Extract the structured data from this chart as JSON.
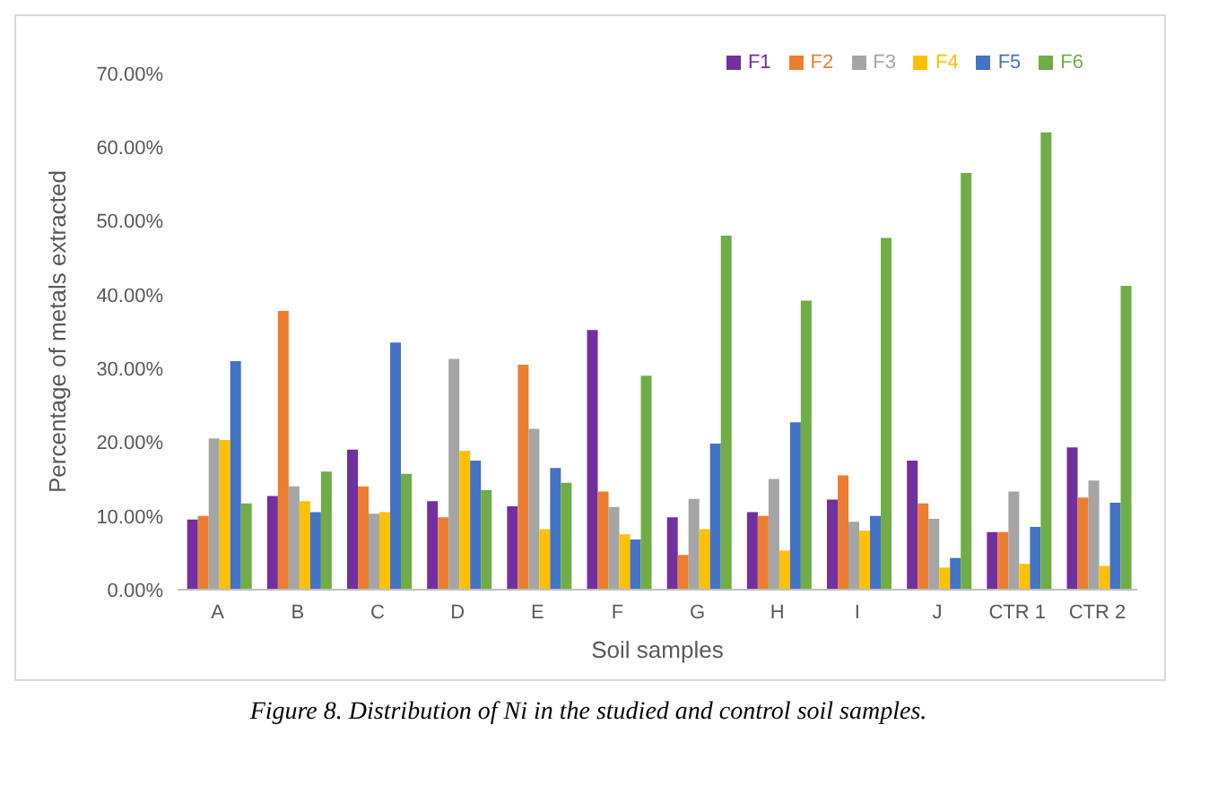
{
  "chart_data": {
    "type": "bar",
    "xlabel": "Soil samples",
    "ylabel": "Percentage of metals extracted",
    "categories": [
      "A",
      "B",
      "C",
      "D",
      "E",
      "F",
      "G",
      "H",
      "I",
      "J",
      "CTR 1",
      "CTR 2"
    ],
    "series": [
      {
        "name": "F1",
        "color": "#7030a0",
        "values": [
          9.5,
          12.7,
          19,
          12,
          11.3,
          35.2,
          9.8,
          10.5,
          12.2,
          17.5,
          7.8,
          19.3
        ]
      },
      {
        "name": "F2",
        "color": "#ed7d31",
        "values": [
          10,
          37.8,
          14,
          9.8,
          30.5,
          13.3,
          4.7,
          10,
          15.5,
          11.7,
          7.8,
          12.5
        ]
      },
      {
        "name": "F3",
        "color": "#a5a5a5",
        "values": [
          20.5,
          14,
          10.3,
          31.3,
          21.8,
          11.2,
          12.3,
          15,
          9.2,
          9.6,
          13.3,
          14.8
        ]
      },
      {
        "name": "F4",
        "color": "#ffc000",
        "values": [
          20.3,
          12,
          10.5,
          18.8,
          8.2,
          7.5,
          8.2,
          5.3,
          8,
          3,
          3.5,
          3.2
        ]
      },
      {
        "name": "F5",
        "color": "#4472c4",
        "values": [
          31,
          10.5,
          33.5,
          17.5,
          16.5,
          6.8,
          19.8,
          22.7,
          10,
          4.3,
          8.5,
          11.8
        ]
      },
      {
        "name": "F6",
        "color": "#70ad47",
        "values": [
          11.7,
          16,
          15.7,
          13.5,
          14.5,
          29,
          48,
          39.2,
          47.7,
          56.5,
          62,
          41.2
        ]
      }
    ],
    "ylim": [
      0,
      70
    ],
    "yticks": [
      {
        "value": 0,
        "label": "0.00%"
      },
      {
        "value": 10,
        "label": "10.00%"
      },
      {
        "value": 20,
        "label": "20.00%"
      },
      {
        "value": 30,
        "label": "30.00%"
      },
      {
        "value": 40,
        "label": "40.00%"
      },
      {
        "value": 50,
        "label": "50.00%"
      },
      {
        "value": 60,
        "label": "60.00%"
      },
      {
        "value": 70,
        "label": "70.00%"
      }
    ],
    "grid": false,
    "legend": "top right",
    "annotations": [
      "Figure 8. Distribution of Ni in the studied and control soil samples."
    ]
  }
}
